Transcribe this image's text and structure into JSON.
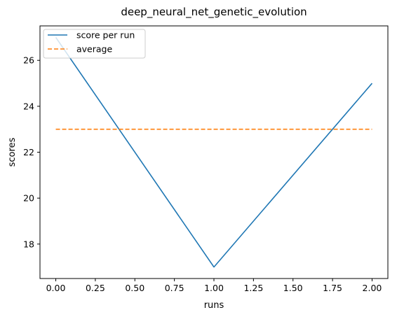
{
  "chart_data": {
    "type": "line",
    "title": "deep_neural_net_genetic_evolution",
    "xlabel": "runs",
    "ylabel": "scores",
    "x": [
      0,
      1,
      2
    ],
    "series": [
      {
        "name": "score per run",
        "values": [
          27,
          17,
          25
        ],
        "color": "#1f77b4",
        "style": "solid"
      },
      {
        "name": "average",
        "values": [
          23,
          23,
          23
        ],
        "color": "#ff7f0e",
        "style": "dashed"
      }
    ],
    "xlim": [
      -0.1,
      2.1
    ],
    "ylim": [
      16.5,
      27.5
    ],
    "xticks": [
      "0.00",
      "0.25",
      "0.50",
      "0.75",
      "1.00",
      "1.25",
      "1.50",
      "1.75",
      "2.00"
    ],
    "yticks": [
      "18",
      "20",
      "22",
      "24",
      "26"
    ],
    "legend_position": "top-left",
    "grid": false
  }
}
